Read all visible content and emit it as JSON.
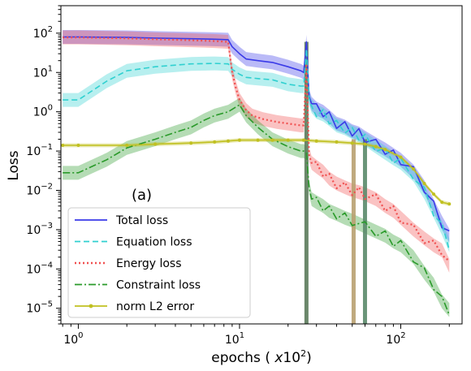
{
  "chart_data": {
    "type": "line",
    "title": "",
    "xlabel": "epochs (x10²)",
    "ylabel": "Loss",
    "xscale": "log",
    "yscale": "log",
    "xlim": [
      0.78,
      240
    ],
    "ylim": [
      4e-06,
      500
    ],
    "grid": false,
    "legend_position": "lower-left",
    "panel_label": "(a)",
    "xticks": [
      {
        "value": 1,
        "base": "10",
        "exp": "0"
      },
      {
        "value": 10,
        "base": "10",
        "exp": "1"
      },
      {
        "value": 100,
        "base": "10",
        "exp": "2"
      }
    ],
    "yticks": [
      {
        "value": 1e-05,
        "base": "10",
        "exp": "−5"
      },
      {
        "value": 0.0001,
        "base": "10",
        "exp": "−4"
      },
      {
        "value": 0.001,
        "base": "10",
        "exp": "−3"
      },
      {
        "value": 0.01,
        "base": "10",
        "exp": "−2"
      },
      {
        "value": 0.1,
        "base": "10",
        "exp": "−1"
      },
      {
        "value": 1,
        "base": "10",
        "exp": "0"
      },
      {
        "value": 10,
        "base": "10",
        "exp": "1"
      },
      {
        "value": 100,
        "base": "10",
        "exp": "2"
      }
    ],
    "vertical_spikes": [
      {
        "x": 26,
        "color": "#5a7a5a"
      },
      {
        "x": 51,
        "color": "#b8a070"
      },
      {
        "x": 60,
        "color": "#5a8a6a"
      }
    ],
    "series": [
      {
        "name": "Total loss",
        "color": "#3a3ae8",
        "dash": "",
        "marker": "",
        "x": [
          0.8,
          1,
          2,
          3,
          5,
          7,
          8.5,
          9,
          10,
          11,
          13,
          16,
          20,
          24,
          25,
          26,
          27,
          28,
          30,
          33,
          36,
          40,
          45,
          50,
          55,
          60,
          70,
          80,
          90,
          100,
          120,
          140,
          160,
          180,
          200
        ],
        "y": [
          80,
          80,
          78,
          75,
          72,
          70,
          68,
          45,
          30,
          22,
          20,
          18,
          14,
          11,
          10,
          60,
          2.5,
          1.6,
          1.2,
          1.0,
          0.75,
          0.5,
          0.42,
          0.32,
          0.28,
          0.22,
          0.15,
          0.11,
          0.08,
          0.06,
          0.03,
          0.012,
          0.004,
          0.0015,
          0.0007
        ]
      },
      {
        "name": "Equation loss",
        "color": "#30d0d0",
        "dash": "7,4",
        "marker": "",
        "x": [
          0.8,
          1,
          1.5,
          2,
          3,
          5,
          7,
          8.5,
          9,
          10,
          11,
          13,
          16,
          20,
          24,
          25,
          26,
          27,
          28,
          30,
          33,
          36,
          40,
          45,
          50,
          55,
          60,
          70,
          80,
          90,
          100,
          120,
          140,
          160,
          180,
          200
        ],
        "y": [
          2,
          2,
          6,
          11,
          14,
          16.5,
          17,
          16.5,
          12,
          9,
          7.5,
          7,
          6.5,
          5,
          4.5,
          4.5,
          40,
          2.2,
          1.4,
          1.0,
          0.85,
          0.65,
          0.45,
          0.38,
          0.3,
          0.25,
          0.2,
          0.13,
          0.09,
          0.065,
          0.05,
          0.025,
          0.009,
          0.003,
          0.0011,
          0.0004
        ]
      },
      {
        "name": "Energy loss",
        "color": "#f05050",
        "dash": "2,3",
        "marker": "",
        "x": [
          0.8,
          1,
          2,
          3,
          5,
          7,
          8.5,
          9,
          9.5,
          10,
          11,
          12,
          14,
          17,
          20,
          24,
          25,
          26,
          27,
          28,
          30,
          33,
          36,
          40,
          45,
          50,
          55,
          60,
          70,
          80,
          90,
          100,
          120,
          140,
          160,
          180,
          200
        ],
        "y": [
          78,
          78,
          74,
          70,
          66,
          63,
          60,
          10,
          4,
          2,
          1.1,
          0.8,
          0.65,
          0.55,
          0.5,
          0.45,
          0.45,
          15,
          0.08,
          0.05,
          0.04,
          0.03,
          0.02,
          0.015,
          0.012,
          0.01,
          0.009,
          0.008,
          0.006,
          0.004,
          0.003,
          0.002,
          0.001,
          0.0006,
          0.0004,
          0.0003,
          0.00012
        ]
      },
      {
        "name": "Constraint loss",
        "color": "#2a9a2a",
        "dash": "9,3,2,3",
        "marker": "",
        "x": [
          0.8,
          1,
          1.5,
          2,
          3,
          4,
          5,
          6,
          7,
          8.5,
          10,
          11,
          13,
          16,
          20,
          24,
          25,
          26,
          27,
          28,
          30,
          33,
          36,
          40,
          45,
          50,
          60,
          70,
          80,
          90,
          100,
          120,
          140,
          160,
          180,
          200
        ],
        "y": [
          0.028,
          0.028,
          0.06,
          0.12,
          0.2,
          0.3,
          0.4,
          0.6,
          0.8,
          1.0,
          1.5,
          0.8,
          0.4,
          0.2,
          0.13,
          0.1,
          0.1,
          0.09,
          0.012,
          0.006,
          0.005,
          0.004,
          0.003,
          0.0025,
          0.002,
          0.0017,
          0.0012,
          0.0009,
          0.0007,
          0.0005,
          0.0004,
          0.0002,
          8e-05,
          4e-05,
          1.5e-05,
          9e-06
        ]
      },
      {
        "name": "norm L2  error",
        "color": "#c0c020",
        "dash": "",
        "marker": "dot",
        "x": [
          0.8,
          1,
          2,
          3,
          5,
          7,
          8.5,
          10,
          13,
          16,
          20,
          25,
          30,
          40,
          50,
          60,
          70,
          80,
          100,
          120,
          140,
          160,
          180,
          200
        ],
        "y": [
          0.14,
          0.14,
          0.14,
          0.15,
          0.16,
          0.17,
          0.18,
          0.19,
          0.19,
          0.19,
          0.19,
          0.19,
          0.18,
          0.17,
          0.16,
          0.15,
          0.13,
          0.11,
          0.07,
          0.035,
          0.015,
          0.008,
          0.005,
          0.0045
        ]
      }
    ]
  }
}
